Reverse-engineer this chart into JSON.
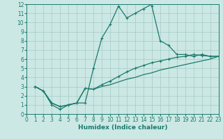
{
  "title": "",
  "xlabel": "Humidex (Indice chaleur)",
  "bg_color": "#cce8e4",
  "grid_color": "#aaceca",
  "line_color": "#1a7a6e",
  "xlim": [
    0,
    23
  ],
  "ylim": [
    0,
    12
  ],
  "xticks": [
    0,
    1,
    2,
    3,
    4,
    5,
    6,
    7,
    8,
    9,
    10,
    11,
    12,
    13,
    14,
    15,
    16,
    17,
    18,
    19,
    20,
    21,
    22,
    23
  ],
  "yticks": [
    0,
    1,
    2,
    3,
    4,
    5,
    6,
    7,
    8,
    9,
    10,
    11,
    12
  ],
  "line1_x": [
    1,
    2,
    3,
    4,
    5,
    6,
    7,
    8,
    9,
    10,
    11,
    12,
    13,
    14,
    15,
    15,
    16,
    17,
    18,
    19,
    20,
    21,
    22,
    23
  ],
  "line1_y": [
    3,
    2.5,
    1.0,
    0.5,
    1.0,
    1.2,
    1.2,
    5.0,
    8.3,
    9.8,
    11.8,
    10.5,
    11.0,
    11.5,
    12.0,
    11.8,
    8.0,
    7.5,
    6.5,
    6.5,
    6.3,
    6.5,
    6.3,
    6.3
  ],
  "line2_x": [
    1,
    2,
    3,
    4,
    5,
    6,
    7,
    8,
    9,
    10,
    11,
    12,
    13,
    14,
    15,
    16,
    17,
    18,
    19,
    20,
    21,
    22,
    23
  ],
  "line2_y": [
    3,
    2.5,
    1.2,
    0.8,
    1.0,
    1.2,
    2.8,
    2.7,
    3.2,
    3.6,
    4.1,
    4.6,
    5.0,
    5.3,
    5.6,
    5.8,
    6.0,
    6.2,
    6.3,
    6.5,
    6.4,
    6.3,
    6.3
  ],
  "line3_x": [
    1,
    2,
    3,
    4,
    5,
    6,
    7,
    8,
    9,
    10,
    11,
    12,
    13,
    14,
    15,
    16,
    17,
    18,
    19,
    20,
    21,
    22,
    23
  ],
  "line3_y": [
    3,
    2.5,
    1.2,
    0.8,
    1.0,
    1.2,
    2.8,
    2.7,
    3.0,
    3.2,
    3.5,
    3.8,
    4.0,
    4.3,
    4.5,
    4.8,
    5.0,
    5.2,
    5.4,
    5.6,
    5.8,
    6.0,
    6.3
  ],
  "tick_fontsize": 5.5,
  "xlabel_fontsize": 6.5,
  "lw": 0.9,
  "ms": 3.5
}
